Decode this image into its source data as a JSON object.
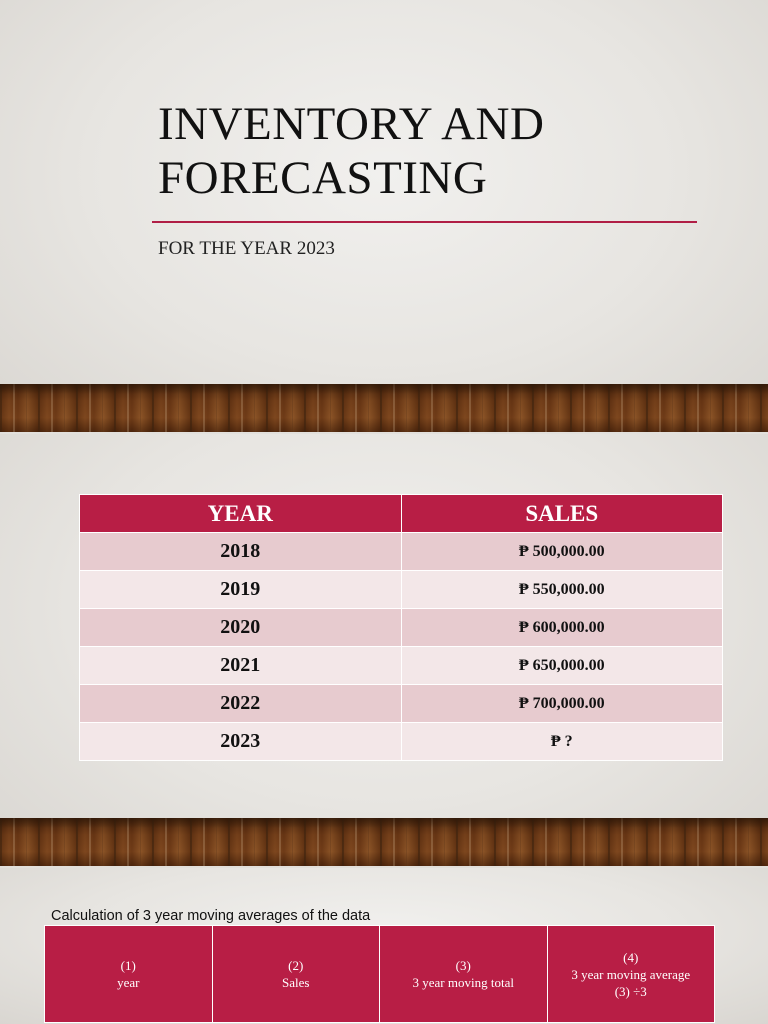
{
  "slide1": {
    "title_line1": "INVENTORY AND",
    "title_line2": "FORECASTING",
    "subtitle": "FOR THE YEAR 2023"
  },
  "slide2": {
    "headers": [
      "YEAR",
      "SALES"
    ],
    "rows": [
      {
        "year": "2018",
        "sales": "₱ 500,000.00"
      },
      {
        "year": "2019",
        "sales": "₱ 550,000.00"
      },
      {
        "year": "2020",
        "sales": "₱ 600,000.00"
      },
      {
        "year": "2021",
        "sales": "₱ 650,000.00"
      },
      {
        "year": "2022",
        "sales": "₱ 700,000.00"
      },
      {
        "year": "2023",
        "sales": "₱ ?"
      }
    ]
  },
  "slide3": {
    "caption": "Calculation of 3 year moving averages of the data",
    "columns": [
      {
        "num": "(1)",
        "label": "year",
        "extra": ""
      },
      {
        "num": "(2)",
        "label": "Sales",
        "extra": ""
      },
      {
        "num": "(3)",
        "label": "3 year moving total",
        "extra": ""
      },
      {
        "num": "(4)",
        "label": "3 year moving average",
        "extra": "(3) ÷3"
      }
    ]
  },
  "colors": {
    "accent": "#b81e45",
    "row_dark": "#e7cbcf",
    "row_light": "#f3e7e8"
  }
}
